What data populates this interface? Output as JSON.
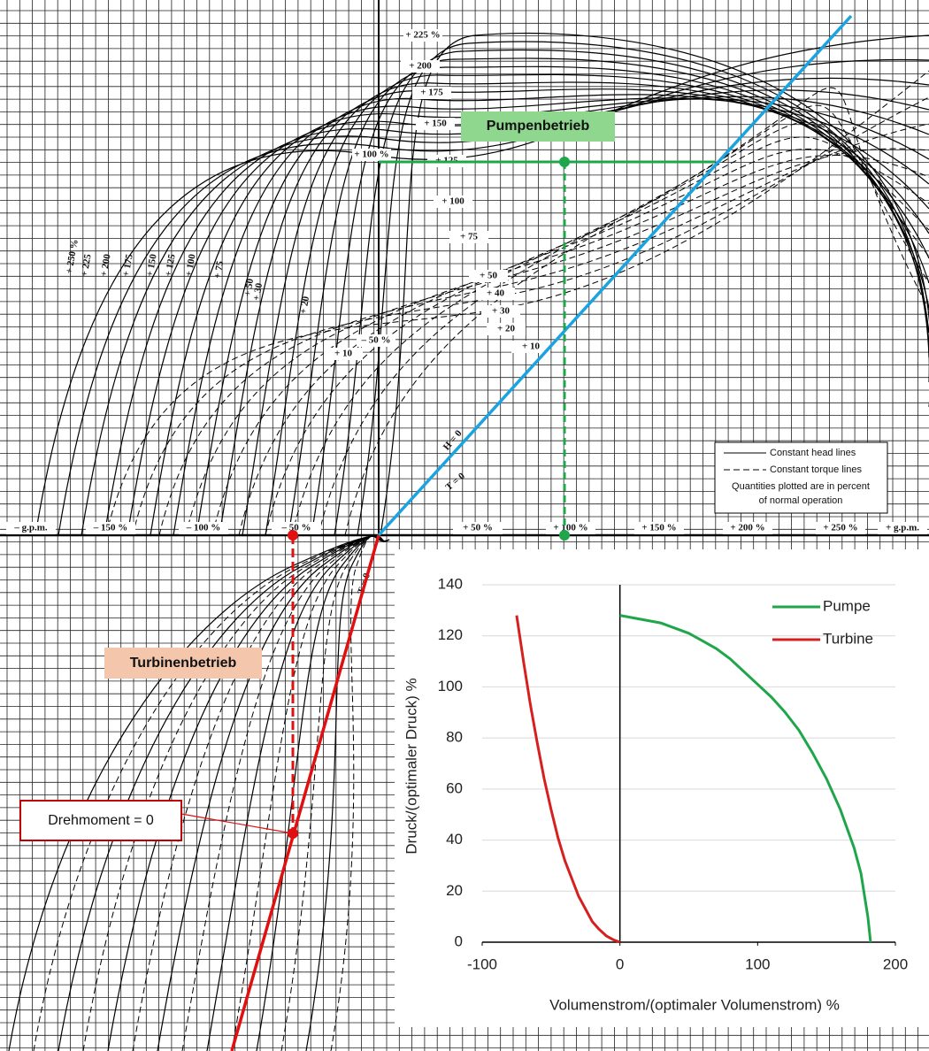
{
  "diagram": {
    "axis_labels": [
      "– g.p.m.",
      "– 150 %",
      "– 100 %",
      "– 50 %",
      "+ 50 %",
      "+ 100 %",
      "+ 150 %",
      "+ 200 %",
      "+ 250 %",
      "+ g.p.m."
    ],
    "head_labels": [
      "+ 225 %",
      "+ 200",
      "+ 175",
      "+ 150",
      "+ 125",
      "+ 100",
      "+ 75",
      "+ 50",
      "+ 40",
      "+ 30",
      "+ 20",
      "+ 10",
      "+ 100 %",
      "+ 10",
      "– 50 %"
    ],
    "left_labels": [
      "+ 250 %",
      "+ 225",
      "+ 200",
      "+ 175",
      "+ 150",
      "+ 125",
      "+ 100",
      "+ 75",
      "+ 50",
      "+ 30",
      "+ 20"
    ],
    "line_labels": [
      "H = 0",
      "T = 0",
      "T = 0"
    ],
    "legend": [
      "Constant head lines",
      "Constant torque lines",
      "Quantities plotted are in percent",
      "of normal operation"
    ]
  },
  "annotations": {
    "pump": "Pumpenbetrieb",
    "turbine": "Turbinenbetrieb",
    "torque": "Drehmoment  = 0"
  },
  "chart_data": {
    "type": "line",
    "xlabel": "Volumenstrom/(optimaler  Volumenstrom)    %",
    "ylabel": "Druck/(optimaler Druck)   %",
    "xlim": [
      -100,
      200
    ],
    "xticks": [
      -100,
      0,
      100,
      200
    ],
    "ylim": [
      0,
      140
    ],
    "yticks": [
      0,
      20,
      40,
      60,
      80,
      100,
      120,
      140
    ],
    "grid": true,
    "legend": "upper right",
    "series": [
      {
        "name": "Pumpe",
        "color": "#1fa64a",
        "x": [
          0,
          10,
          20,
          30,
          40,
          50,
          60,
          70,
          80,
          90,
          100,
          110,
          120,
          130,
          140,
          150,
          160,
          170,
          175,
          180,
          182
        ],
        "values": [
          128,
          127,
          126,
          125,
          123,
          121,
          118,
          115,
          111,
          106,
          101,
          96,
          90,
          83,
          74,
          64,
          52,
          37,
          27,
          10,
          0
        ]
      },
      {
        "name": "Turbine",
        "color": "#d62020",
        "x": [
          -75,
          -70,
          -65,
          -60,
          -55,
          -50,
          -45,
          -40,
          -35,
          -30,
          -25,
          -20,
          -15,
          -10,
          -5,
          0
        ],
        "values": [
          128,
          110,
          93,
          78,
          64,
          52,
          41,
          32,
          25,
          18,
          13,
          8,
          5,
          2.5,
          1,
          0
        ]
      }
    ]
  }
}
